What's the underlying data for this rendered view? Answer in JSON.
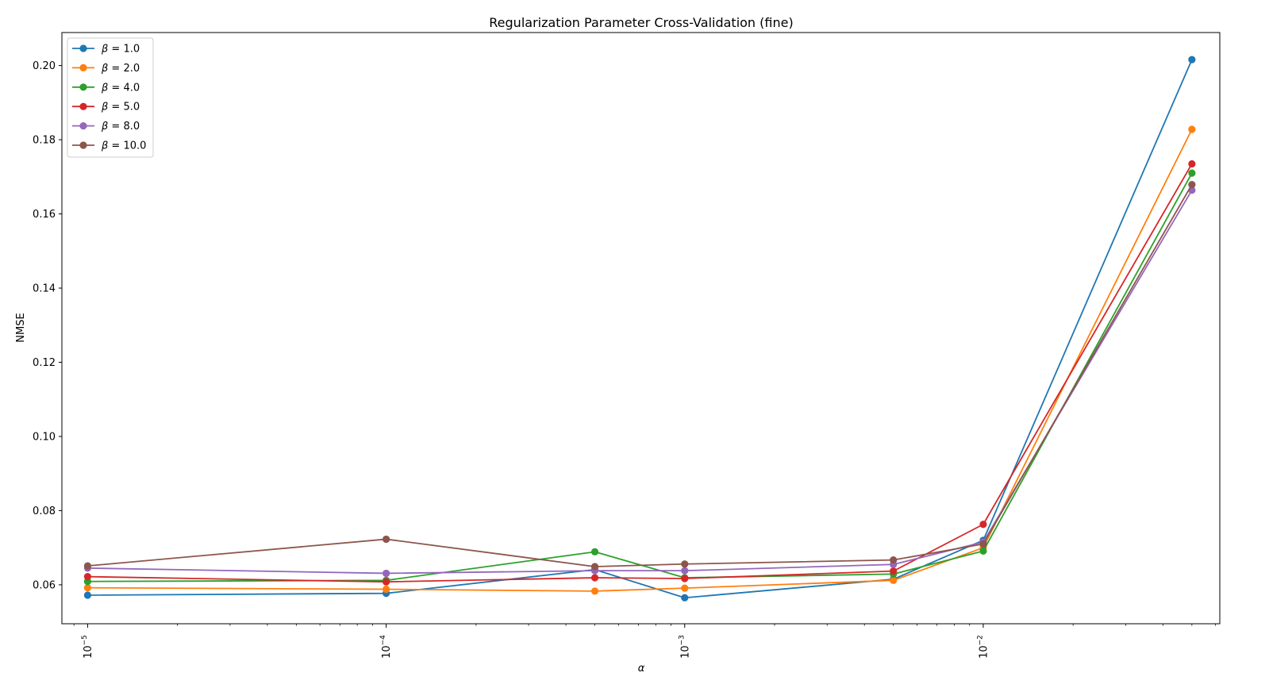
{
  "chart_data": {
    "type": "line",
    "title": "Regularization Parameter Cross-Validation (fine)",
    "xlabel": "α",
    "ylabel": "NMSE",
    "x_scale": "log",
    "x": [
      1e-05,
      0.0001,
      0.0005,
      0.001,
      0.005,
      0.01,
      0.05
    ],
    "xlim": [
      8.2e-06,
      0.062
    ],
    "ylim": [
      0.0495,
      0.2089
    ],
    "x_ticks": [
      {
        "value": 1e-05,
        "base": "10",
        "exp": "−5"
      },
      {
        "value": 0.0001,
        "base": "10",
        "exp": "−4"
      },
      {
        "value": 0.001,
        "base": "10",
        "exp": "−3"
      },
      {
        "value": 0.01,
        "base": "10",
        "exp": "−2"
      }
    ],
    "y_ticks": [
      "0.06",
      "0.08",
      "0.10",
      "0.12",
      "0.14",
      "0.16",
      "0.18",
      "0.20"
    ],
    "grid": false,
    "legend_position": "top-left",
    "series": [
      {
        "name": "β = 1.0",
        "symbol": "β",
        "label_rest": " = 1.0",
        "color": "#1f77b4",
        "values": [
          0.0572,
          0.0577,
          0.0641,
          0.0565,
          0.0615,
          0.072,
          0.2016
        ]
      },
      {
        "name": "β = 2.0",
        "symbol": "β",
        "label_rest": " = 2.0",
        "color": "#ff7f0e",
        "values": [
          0.0592,
          0.0588,
          0.0583,
          0.0591,
          0.0612,
          0.07,
          0.1828
        ]
      },
      {
        "name": "β = 4.0",
        "symbol": "β",
        "label_rest": " = 4.0",
        "color": "#2ca02c",
        "values": [
          0.0609,
          0.0612,
          0.0689,
          0.0619,
          0.0629,
          0.0691,
          0.171
        ]
      },
      {
        "name": "β = 5.0",
        "symbol": "β",
        "label_rest": " = 5.0",
        "color": "#d62728",
        "values": [
          0.0622,
          0.0608,
          0.0619,
          0.0617,
          0.0637,
          0.0763,
          0.1735
        ]
      },
      {
        "name": "β = 8.0",
        "symbol": "β",
        "label_rest": " = 8.0",
        "color": "#9467bd",
        "values": [
          0.0645,
          0.0631,
          0.0638,
          0.0638,
          0.0655,
          0.0715,
          0.1664
        ]
      },
      {
        "name": "β = 10.0",
        "symbol": "β",
        "label_rest": " = 10.0",
        "color": "#8c564b",
        "values": [
          0.0651,
          0.0723,
          0.0649,
          0.0656,
          0.0667,
          0.071,
          0.1679
        ]
      }
    ]
  }
}
